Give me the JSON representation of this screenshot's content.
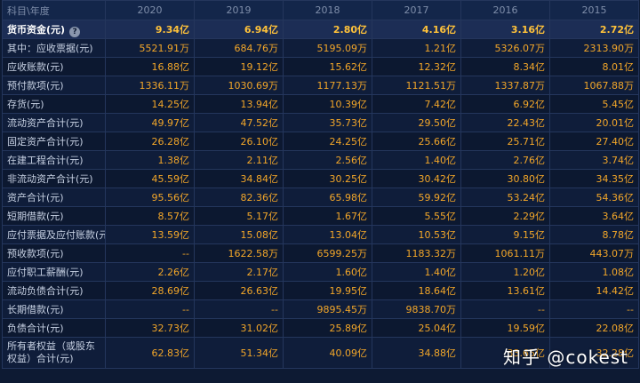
{
  "table": {
    "corner": "科目\\年度",
    "years": [
      "2020",
      "2019",
      "2018",
      "2017",
      "2016",
      "2015"
    ],
    "rows": [
      {
        "label": "货币资金(元)",
        "values": [
          "9.34亿",
          "6.94亿",
          "2.80亿",
          "4.16亿",
          "3.16亿",
          "2.72亿"
        ],
        "highlight": true,
        "help": "?"
      },
      {
        "label": "其中：应收票据(元)",
        "values": [
          "5521.91万",
          "684.76万",
          "5195.09万",
          "1.21亿",
          "5326.07万",
          "2313.90万"
        ]
      },
      {
        "label": "应收账款(元)",
        "values": [
          "16.88亿",
          "19.12亿",
          "15.62亿",
          "12.32亿",
          "8.34亿",
          "8.01亿"
        ]
      },
      {
        "label": "预付款项(元)",
        "values": [
          "1336.11万",
          "1030.69万",
          "1177.13万",
          "1121.51万",
          "1337.87万",
          "1067.88万"
        ]
      },
      {
        "label": "存货(元)",
        "values": [
          "14.25亿",
          "13.94亿",
          "10.39亿",
          "7.42亿",
          "6.92亿",
          "5.45亿"
        ]
      },
      {
        "label": "流动资产合计(元)",
        "values": [
          "49.97亿",
          "47.52亿",
          "35.73亿",
          "29.50亿",
          "22.43亿",
          "20.01亿"
        ]
      },
      {
        "label": "固定资产合计(元)",
        "values": [
          "26.28亿",
          "26.10亿",
          "24.25亿",
          "25.66亿",
          "25.71亿",
          "27.40亿"
        ]
      },
      {
        "label": "在建工程合计(元)",
        "values": [
          "1.38亿",
          "2.11亿",
          "2.56亿",
          "1.40亿",
          "2.76亿",
          "3.74亿"
        ]
      },
      {
        "label": "非流动资产合计(元)",
        "values": [
          "45.59亿",
          "34.84亿",
          "30.25亿",
          "30.42亿",
          "30.80亿",
          "34.35亿"
        ]
      },
      {
        "label": "资产合计(元)",
        "values": [
          "95.56亿",
          "82.36亿",
          "65.98亿",
          "59.92亿",
          "53.24亿",
          "54.36亿"
        ]
      },
      {
        "label": "短期借款(元)",
        "values": [
          "8.57亿",
          "5.17亿",
          "1.67亿",
          "5.55亿",
          "2.29亿",
          "3.64亿"
        ]
      },
      {
        "label": "应付票据及应付账款(元)",
        "values": [
          "13.59亿",
          "15.08亿",
          "13.04亿",
          "10.53亿",
          "9.15亿",
          "8.78亿"
        ]
      },
      {
        "label": "预收款项(元)",
        "values": [
          "--",
          "1622.58万",
          "6599.25万",
          "1183.32万",
          "1061.11万",
          "443.07万"
        ]
      },
      {
        "label": "应付职工薪酬(元)",
        "values": [
          "2.26亿",
          "2.17亿",
          "1.60亿",
          "1.40亿",
          "1.20亿",
          "1.08亿"
        ]
      },
      {
        "label": "流动负债合计(元)",
        "values": [
          "28.69亿",
          "26.63亿",
          "19.95亿",
          "18.64亿",
          "13.61亿",
          "14.42亿"
        ]
      },
      {
        "label": "长期借款(元)",
        "values": [
          "--",
          "--",
          "9895.45万",
          "9838.70万",
          "--",
          "--"
        ]
      },
      {
        "label": "负债合计(元)",
        "values": [
          "32.73亿",
          "31.02亿",
          "25.89亿",
          "25.04亿",
          "19.59亿",
          "22.08亿"
        ]
      },
      {
        "label": "所有者权益（或股东权益）合计(元)",
        "values": [
          "62.83亿",
          "51.34亿",
          "40.09亿",
          "34.88亿",
          "33.65亿",
          "32.28亿"
        ],
        "tall": true
      }
    ]
  },
  "watermark": "知乎 @cokest"
}
